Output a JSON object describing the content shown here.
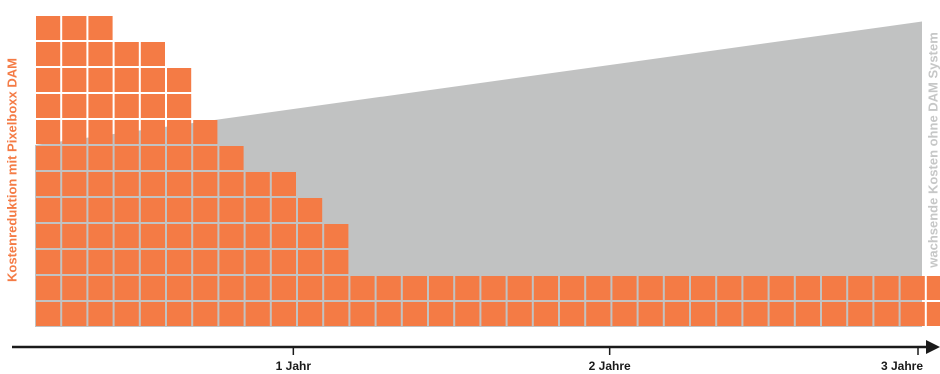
{
  "colors": {
    "reduction": "#f47b45",
    "growth": "#c1c2c2",
    "grid_gap": "#ffffff",
    "axis": "#1a1a1a",
    "left_label": "#f47b45",
    "right_label": "#c6c7c7"
  },
  "chart_data": {
    "type": "area",
    "x_ticks": [
      {
        "label": "1 Jahr",
        "value": 1
      },
      {
        "label": "2 Jahre",
        "value": 2
      },
      {
        "label": "3 Jahre",
        "value": 3
      }
    ],
    "xlim": [
      0,
      3
    ],
    "series": [
      {
        "name": "Kostenreduktion mit Pixelboxx DAM",
        "kind": "block-columns",
        "column_counts": [
          12,
          12,
          12,
          11,
          11,
          10,
          8,
          7,
          6,
          6,
          5,
          4,
          2,
          2,
          2,
          2,
          2,
          2,
          2,
          2,
          2,
          2,
          2,
          2,
          2,
          2,
          2,
          2,
          2,
          2,
          2,
          2,
          2,
          2,
          2
        ]
      },
      {
        "name": "wachsende Kosten ohne DAM System",
        "kind": "area",
        "start_value": 7,
        "end_value": 11.75
      }
    ],
    "left_label": "Kostenreduktion mit Pixelboxx DAM",
    "right_label": "wachsende Kosten ohne DAM System",
    "grid": false,
    "legend": "none"
  }
}
